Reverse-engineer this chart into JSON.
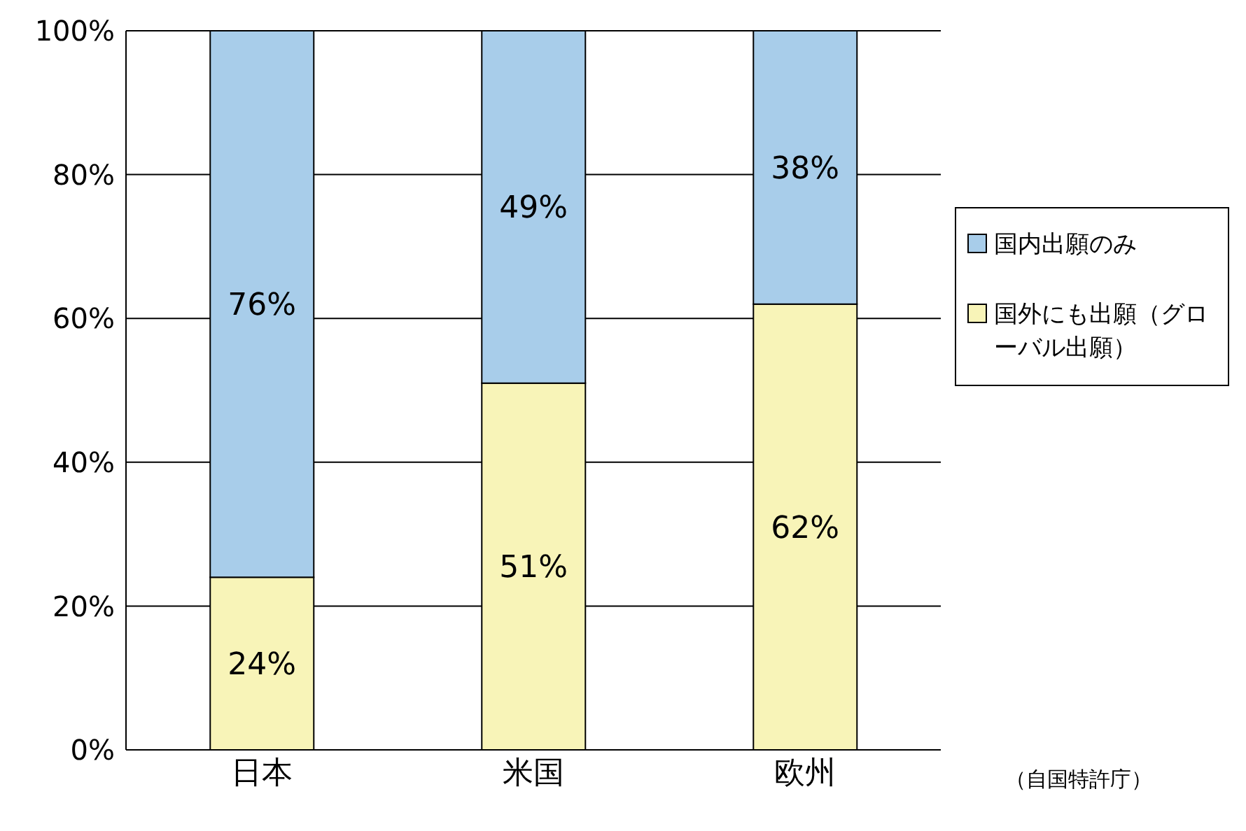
{
  "chart_data": {
    "type": "bar",
    "stacked": true,
    "categories": [
      "日本",
      "米国",
      "欧州"
    ],
    "series": [
      {
        "name": "国外にも出願（グローバル出願）",
        "color": "#f8f4b8",
        "values": [
          24,
          51,
          62
        ],
        "value_labels": [
          "24%",
          "51%",
          "62%"
        ]
      },
      {
        "name": "国内出願のみ",
        "color": "#a8cdea",
        "values": [
          76,
          49,
          38
        ],
        "value_labels": [
          "76%",
          "49%",
          "38%"
        ]
      }
    ],
    "ylim": [
      0,
      100
    ],
    "yticks": [
      {
        "value": 0,
        "label": "0%"
      },
      {
        "value": 20,
        "label": "20%"
      },
      {
        "value": 40,
        "label": "40%"
      },
      {
        "value": 60,
        "label": "60%"
      },
      {
        "value": 80,
        "label": "80%"
      },
      {
        "value": 100,
        "label": "100%"
      }
    ],
    "grid": "y",
    "legend": "right",
    "annotations": [
      "（自国特許庁）"
    ]
  }
}
